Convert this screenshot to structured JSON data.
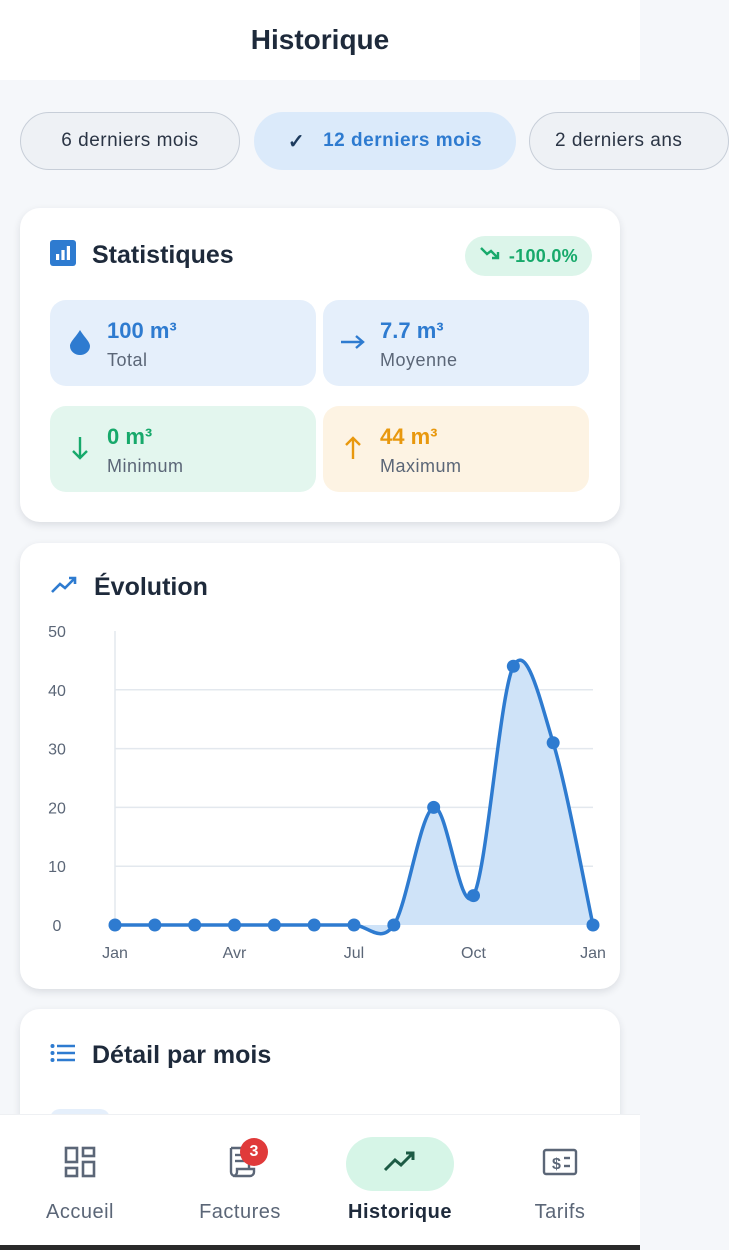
{
  "app_bar": {
    "title": "Historique"
  },
  "period_chips": [
    {
      "label": "6 derniers mois",
      "selected": false
    },
    {
      "label": "12 derniers mois",
      "selected": true
    },
    {
      "label": "2 derniers ans",
      "selected": false
    }
  ],
  "stats": {
    "title": "Statistiques",
    "icon": "bar-chart-icon",
    "trend": {
      "value": "-100.0%",
      "icon": "trending-down-icon",
      "color": "#17a96b"
    },
    "tiles": [
      {
        "value": "100 m³",
        "label": "Total",
        "icon": "water-drop-icon",
        "color": "#2e7bd0",
        "bg": "#e5effb"
      },
      {
        "value": "7.7 m³",
        "label": "Moyenne",
        "icon": "arrow-right-icon",
        "color": "#2e7bd0",
        "bg": "#e5effb"
      },
      {
        "value": "0 m³",
        "label": "Minimum",
        "icon": "arrow-down-icon",
        "color": "#17a96b",
        "bg": "#e3f6ee"
      },
      {
        "value": "44 m³",
        "label": "Maximum",
        "icon": "arrow-up-icon",
        "color": "#e8980e",
        "bg": "#fdf3e3"
      }
    ]
  },
  "evolution": {
    "title": "Évolution",
    "icon": "trend-line-icon"
  },
  "chart_data": {
    "type": "area",
    "x": [
      1,
      2,
      3,
      4,
      5,
      6,
      7,
      8,
      9,
      10,
      11,
      12,
      13
    ],
    "values": [
      0,
      0,
      0,
      0,
      0,
      0,
      0,
      0,
      20,
      5,
      44,
      31,
      0
    ],
    "x_ticks": [
      {
        "x": 1,
        "label": "Jan"
      },
      {
        "x": 4,
        "label": "Avr"
      },
      {
        "x": 7,
        "label": "Jul"
      },
      {
        "x": 10,
        "label": "Oct"
      },
      {
        "x": 13,
        "label": "Jan"
      }
    ],
    "y_ticks": [
      0,
      10,
      20,
      30,
      40,
      50
    ],
    "ylim": [
      0,
      50
    ],
    "grid": true,
    "color": "#2e7bd0",
    "fill_color": "#cfe3f8"
  },
  "monthly_detail": {
    "title": "Détail par mois",
    "icon": "list-icon"
  },
  "bottom_nav": [
    {
      "label": "Accueil",
      "icon": "dashboard-icon",
      "active": false
    },
    {
      "label": "Factures",
      "icon": "receipt-icon",
      "active": false,
      "badge": "3"
    },
    {
      "label": "Historique",
      "icon": "trend-line-icon",
      "active": true
    },
    {
      "label": "Tarifs",
      "icon": "price-tag-icon",
      "active": false
    }
  ]
}
